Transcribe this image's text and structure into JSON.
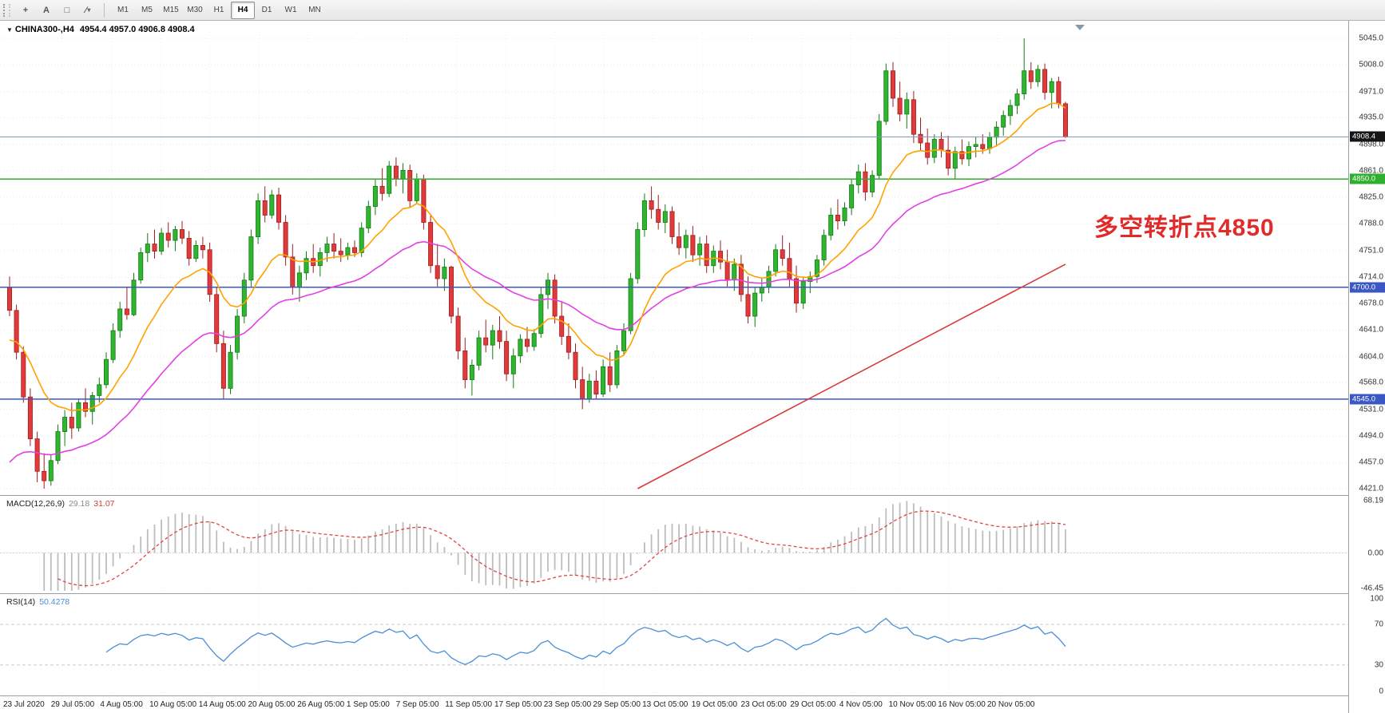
{
  "toolbar": {
    "tools": [
      {
        "name": "crosshair-tool-icon",
        "glyph": "+"
      },
      {
        "name": "text-tool-icon",
        "glyph": "A"
      },
      {
        "name": "shape-tool-icon",
        "glyph": "□"
      },
      {
        "name": "draw-tools-menu-icon",
        "glyph": "∕",
        "dropdown": true
      }
    ],
    "timeframes": [
      "M1",
      "M5",
      "M15",
      "M30",
      "H1",
      "H4",
      "D1",
      "W1",
      "MN"
    ],
    "active_timeframe": "H4"
  },
  "header": {
    "symbol": "CHINA300-,H4",
    "ohlc": "4954.4 4957.0 4906.8 4908.4"
  },
  "annotation": {
    "text": "多空转折点4850",
    "color": "#E02B2B"
  },
  "macd": {
    "name": "MACD(12,26,9)",
    "value": "29.18",
    "signal": "31.07",
    "axis": [
      "68.19",
      "0.00",
      "-46.45"
    ]
  },
  "rsi": {
    "name": "RSI(14)",
    "value": "50.4278",
    "axis": [
      "100",
      "70",
      "30",
      "0"
    ]
  },
  "time_axis": {
    "labels": [
      "23 Jul 2020",
      "29 Jul 05:00",
      "4 Aug 05:00",
      "10 Aug 05:00",
      "14 Aug 05:00",
      "20 Aug 05:00",
      "26 Aug 05:00",
      "1 Sep 05:00",
      "7 Sep 05:00",
      "11 Sep 05:00",
      "17 Sep 05:00",
      "23 Sep 05:00",
      "29 Sep 05:00",
      "13 Oct 05:00",
      "19 Oct 05:00",
      "23 Oct 05:00",
      "29 Oct 05:00",
      "4 Nov 05:00",
      "10 Nov 05:00",
      "16 Nov 05:00",
      "20 Nov 05:00"
    ]
  },
  "chart_data": {
    "type": "candlestick",
    "symbol": "CHINA300-",
    "timeframe": "H4",
    "current_bar": {
      "open": 4954.4,
      "high": 4957.0,
      "low": 4906.8,
      "close": 4908.4
    },
    "price_axis": {
      "min": 4421.0,
      "max": 5045.0,
      "ticks": [
        5045.0,
        5008.0,
        4971.0,
        4935.0,
        4898.0,
        4861.0,
        4825.0,
        4788.0,
        4751.0,
        4714.0,
        4678.0,
        4641.0,
        4604.0,
        4568.0,
        4531.0,
        4494.0,
        4457.0,
        4421.0
      ]
    },
    "price_marks": [
      {
        "price": 4908.4,
        "label": "4908.4",
        "line_color": "#7f9db9",
        "line_width": 1,
        "badge_bg": "#151515"
      },
      {
        "price": 4850.0,
        "label": "4850.0",
        "line_color": "#2EAF2E",
        "line_width": 1.5,
        "badge_bg": "#2EAF2E"
      },
      {
        "price": 4700.0,
        "label": "4700.0",
        "line_color": "#3A57C4",
        "line_width": 1.5,
        "badge_bg": "#3A57C4"
      },
      {
        "price": 4545.0,
        "label": "4545.0",
        "line_color": "#3A57C4",
        "line_width": 1.5,
        "badge_bg": "#3A57C4"
      }
    ],
    "colors": {
      "bull": "#2FB52F",
      "bull_edge": "#157a15",
      "bear": "#E23A3A",
      "bear_edge": "#9e1f1f"
    },
    "overlays": {
      "fast_ma": {
        "period": 13,
        "color": "#FFA200",
        "seed": 4620
      },
      "slow_ma": {
        "period": 34,
        "color": "#E340E3",
        "seed": 4445
      }
    },
    "trendline": {
      "from_index": 91,
      "from_price": 4421,
      "to_index": 153,
      "to_price": 4732,
      "color": "#D83A3A"
    },
    "indicators": {
      "macd": {
        "fast": 12,
        "slow": 26,
        "signal": 9,
        "hist_color": "#bdbdbd",
        "signal_color": "#E04545",
        "axis_max": 68.19,
        "axis_min": -46.45
      },
      "rsi": {
        "period": 14,
        "color": "#4A8FD6",
        "levels": [
          70,
          30
        ]
      }
    },
    "candles": [
      [
        4700,
        4715,
        4660,
        4668
      ],
      [
        4668,
        4676,
        4600,
        4610
      ],
      [
        4610,
        4618,
        4540,
        4548
      ],
      [
        4548,
        4560,
        4480,
        4490
      ],
      [
        4490,
        4500,
        4430,
        4445
      ],
      [
        4445,
        4470,
        4421,
        4432
      ],
      [
        4432,
        4468,
        4425,
        4460
      ],
      [
        4460,
        4510,
        4455,
        4500
      ],
      [
        4500,
        4530,
        4480,
        4520
      ],
      [
        4520,
        4540,
        4490,
        4505
      ],
      [
        4505,
        4545,
        4500,
        4540
      ],
      [
        4540,
        4560,
        4520,
        4528
      ],
      [
        4528,
        4555,
        4510,
        4550
      ],
      [
        4550,
        4575,
        4540,
        4565
      ],
      [
        4565,
        4610,
        4560,
        4600
      ],
      [
        4600,
        4650,
        4595,
        4640
      ],
      [
        4640,
        4680,
        4630,
        4670
      ],
      [
        4670,
        4700,
        4655,
        4662
      ],
      [
        4662,
        4720,
        4660,
        4710
      ],
      [
        4710,
        4755,
        4705,
        4748
      ],
      [
        4748,
        4775,
        4735,
        4760
      ],
      [
        4760,
        4780,
        4740,
        4750
      ],
      [
        4750,
        4782,
        4745,
        4775
      ],
      [
        4775,
        4790,
        4755,
        4765
      ],
      [
        4765,
        4785,
        4750,
        4780
      ],
      [
        4780,
        4792,
        4760,
        4768
      ],
      [
        4768,
        4778,
        4730,
        4740
      ],
      [
        4740,
        4765,
        4735,
        4758
      ],
      [
        4758,
        4770,
        4740,
        4752
      ],
      [
        4752,
        4762,
        4680,
        4690
      ],
      [
        4690,
        4700,
        4610,
        4622
      ],
      [
        4622,
        4640,
        4545,
        4560
      ],
      [
        4560,
        4620,
        4552,
        4610
      ],
      [
        4610,
        4670,
        4600,
        4660
      ],
      [
        4660,
        4720,
        4650,
        4710
      ],
      [
        4710,
        4780,
        4700,
        4770
      ],
      [
        4770,
        4830,
        4760,
        4820
      ],
      [
        4820,
        4840,
        4790,
        4800
      ],
      [
        4800,
        4835,
        4795,
        4828
      ],
      [
        4828,
        4838,
        4780,
        4790
      ],
      [
        4790,
        4800,
        4730,
        4742
      ],
      [
        4742,
        4760,
        4690,
        4700
      ],
      [
        4700,
        4730,
        4680,
        4720
      ],
      [
        4720,
        4750,
        4710,
        4740
      ],
      [
        4740,
        4760,
        4720,
        4730
      ],
      [
        4730,
        4755,
        4715,
        4748
      ],
      [
        4748,
        4770,
        4735,
        4760
      ],
      [
        4760,
        4775,
        4740,
        4750
      ],
      [
        4750,
        4768,
        4735,
        4745
      ],
      [
        4745,
        4762,
        4738,
        4755
      ],
      [
        4755,
        4765,
        4742,
        4748
      ],
      [
        4748,
        4790,
        4742,
        4782
      ],
      [
        4782,
        4820,
        4775,
        4812
      ],
      [
        4812,
        4850,
        4800,
        4840
      ],
      [
        4840,
        4865,
        4820,
        4830
      ],
      [
        4830,
        4875,
        4825,
        4868
      ],
      [
        4868,
        4880,
        4840,
        4850
      ],
      [
        4850,
        4872,
        4830,
        4862
      ],
      [
        4862,
        4870,
        4810,
        4820
      ],
      [
        4820,
        4858,
        4815,
        4850
      ],
      [
        4850,
        4856,
        4780,
        4790
      ],
      [
        4790,
        4800,
        4720,
        4730
      ],
      [
        4730,
        4760,
        4700,
        4712
      ],
      [
        4712,
        4740,
        4695,
        4728
      ],
      [
        4728,
        4730,
        4650,
        4660
      ],
      [
        4660,
        4672,
        4600,
        4612
      ],
      [
        4612,
        4630,
        4560,
        4572
      ],
      [
        4572,
        4600,
        4550,
        4592
      ],
      [
        4592,
        4640,
        4585,
        4630
      ],
      [
        4630,
        4655,
        4610,
        4620
      ],
      [
        4620,
        4648,
        4600,
        4640
      ],
      [
        4640,
        4660,
        4615,
        4625
      ],
      [
        4625,
        4640,
        4570,
        4580
      ],
      [
        4580,
        4615,
        4560,
        4605
      ],
      [
        4605,
        4635,
        4595,
        4628
      ],
      [
        4628,
        4645,
        4610,
        4618
      ],
      [
        4618,
        4642,
        4612,
        4636
      ],
      [
        4636,
        4700,
        4630,
        4690
      ],
      [
        4690,
        4720,
        4670,
        4710
      ],
      [
        4710,
        4718,
        4650,
        4660
      ],
      [
        4660,
        4680,
        4620,
        4632
      ],
      [
        4632,
        4650,
        4600,
        4610
      ],
      [
        4610,
        4622,
        4560,
        4572
      ],
      [
        4572,
        4590,
        4531,
        4545
      ],
      [
        4545,
        4580,
        4540,
        4570
      ],
      [
        4570,
        4585,
        4545,
        4552
      ],
      [
        4552,
        4600,
        4548,
        4590
      ],
      [
        4590,
        4610,
        4555,
        4565
      ],
      [
        4565,
        4620,
        4560,
        4612
      ],
      [
        4612,
        4650,
        4605,
        4640
      ],
      [
        4640,
        4720,
        4635,
        4712
      ],
      [
        4712,
        4790,
        4705,
        4780
      ],
      [
        4780,
        4830,
        4770,
        4820
      ],
      [
        4820,
        4840,
        4795,
        4808
      ],
      [
        4808,
        4828,
        4780,
        4790
      ],
      [
        4790,
        4815,
        4775,
        4805
      ],
      [
        4805,
        4812,
        4760,
        4770
      ],
      [
        4770,
        4790,
        4745,
        4755
      ],
      [
        4755,
        4780,
        4740,
        4772
      ],
      [
        4772,
        4785,
        4735,
        4745
      ],
      [
        4745,
        4770,
        4730,
        4760
      ],
      [
        4760,
        4772,
        4720,
        4730
      ],
      [
        4730,
        4758,
        4720,
        4750
      ],
      [
        4750,
        4765,
        4725,
        4735
      ],
      [
        4735,
        4752,
        4700,
        4710
      ],
      [
        4710,
        4740,
        4695,
        4732
      ],
      [
        4732,
        4745,
        4680,
        4690
      ],
      [
        4690,
        4715,
        4650,
        4660
      ],
      [
        4660,
        4700,
        4645,
        4692
      ],
      [
        4692,
        4712,
        4680,
        4700
      ],
      [
        4700,
        4730,
        4692,
        4722
      ],
      [
        4722,
        4760,
        4715,
        4752
      ],
      [
        4752,
        4772,
        4730,
        4740
      ],
      [
        4740,
        4762,
        4700,
        4712
      ],
      [
        4712,
        4730,
        4665,
        4678
      ],
      [
        4678,
        4715,
        4670,
        4708
      ],
      [
        4708,
        4722,
        4692,
        4715
      ],
      [
        4715,
        4745,
        4706,
        4738
      ],
      [
        4738,
        4780,
        4730,
        4772
      ],
      [
        4772,
        4810,
        4765,
        4800
      ],
      [
        4800,
        4822,
        4780,
        4792
      ],
      [
        4792,
        4818,
        4785,
        4810
      ],
      [
        4810,
        4850,
        4800,
        4842
      ],
      [
        4842,
        4870,
        4830,
        4860
      ],
      [
        4860,
        4872,
        4820,
        4832
      ],
      [
        4832,
        4862,
        4825,
        4855
      ],
      [
        4855,
        4940,
        4850,
        4930
      ],
      [
        4930,
        5010,
        4925,
        5000
      ],
      [
        5000,
        5012,
        4950,
        4962
      ],
      [
        4962,
        4985,
        4930,
        4940
      ],
      [
        4940,
        4970,
        4920,
        4960
      ],
      [
        4960,
        4972,
        4900,
        4912
      ],
      [
        4912,
        4935,
        4890,
        4900
      ],
      [
        4900,
        4920,
        4870,
        4880
      ],
      [
        4880,
        4912,
        4872,
        4905
      ],
      [
        4905,
        4915,
        4880,
        4890
      ],
      [
        4890,
        4910,
        4855,
        4865
      ],
      [
        4865,
        4895,
        4850,
        4888
      ],
      [
        4888,
        4905,
        4870,
        4878
      ],
      [
        4878,
        4902,
        4868,
        4895
      ],
      [
        4895,
        4908,
        4880,
        4898
      ],
      [
        4898,
        4912,
        4885,
        4892
      ],
      [
        4892,
        4915,
        4885,
        4908
      ],
      [
        4908,
        4930,
        4895,
        4922
      ],
      [
        4922,
        4945,
        4910,
        4938
      ],
      [
        4938,
        4960,
        4925,
        4952
      ],
      [
        4952,
        4975,
        4940,
        4968
      ],
      [
        4968,
        5045,
        4960,
        5000
      ],
      [
        5000,
        5012,
        4975,
        4985
      ],
      [
        4985,
        5008,
        4978,
        5002
      ],
      [
        5002,
        5010,
        4960,
        4970
      ],
      [
        4970,
        4990,
        4948,
        4985
      ],
      [
        4985,
        4992,
        4948,
        4954.4
      ],
      [
        4954.4,
        4957.0,
        4906.8,
        4908.4
      ]
    ]
  }
}
